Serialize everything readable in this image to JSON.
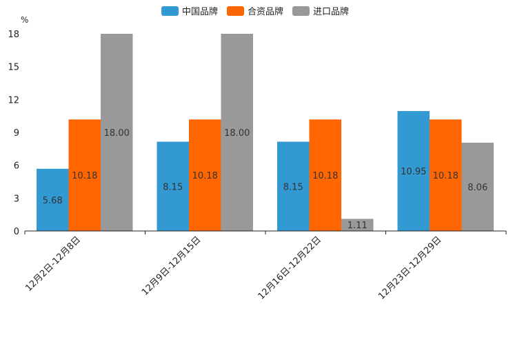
{
  "chart_data": {
    "type": "bar",
    "title": "",
    "ylabel": "%",
    "xlabel": "",
    "ylim": [
      0,
      18
    ],
    "yticks": [
      0,
      3,
      6,
      9,
      12,
      15,
      18
    ],
    "categories": [
      "12月2日-12月8日",
      "12月9日-12月15日",
      "12月16日-12月22日",
      "12月23日-12月29日"
    ],
    "series": [
      {
        "name": "中国品牌",
        "color": "#3399d3",
        "values": [
          5.68,
          8.15,
          8.15,
          10.95
        ],
        "labels": [
          "5.68",
          "8.15",
          "8.15",
          "10.95"
        ]
      },
      {
        "name": "合资品牌",
        "color": "#ff6600",
        "values": [
          10.18,
          10.18,
          10.18,
          10.18
        ],
        "labels": [
          "10.18",
          "10.18",
          "10.18",
          "10.18"
        ]
      },
      {
        "name": "进口品牌",
        "color": "#999999",
        "values": [
          18.0,
          18.0,
          1.11,
          8.06
        ],
        "labels": [
          "18.00",
          "18.00",
          "1.11",
          "8.06"
        ]
      }
    ],
    "legend_position": "top-center"
  }
}
